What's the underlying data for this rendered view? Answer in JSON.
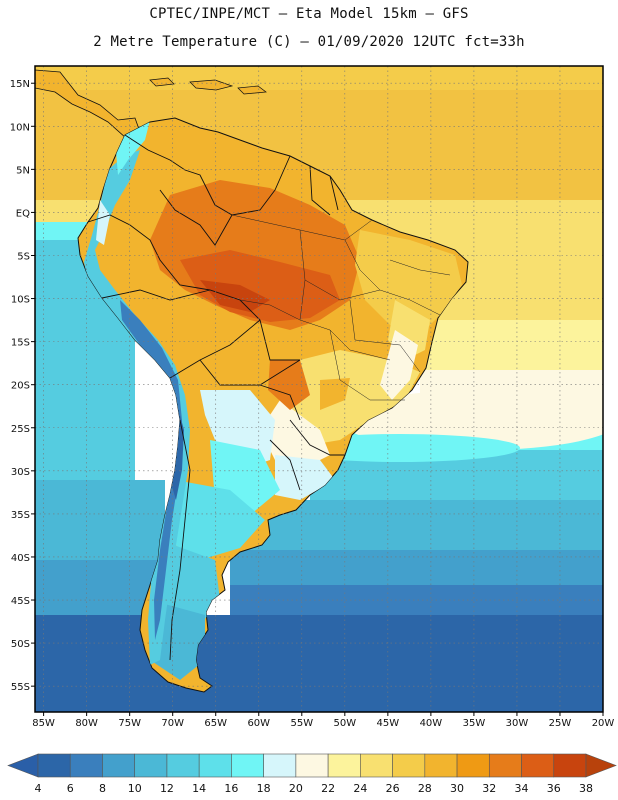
{
  "header": {
    "line1": "CPTEC/INPE/MCT –  Eta Model 15km – GFS",
    "line2": "2 Metre Temperature (C) – 01/09/2020 12UTC fct=33h"
  },
  "map": {
    "lat_labels": [
      "15N",
      "10N",
      "5N",
      "EQ",
      "5S",
      "10S",
      "15S",
      "20S",
      "25S",
      "30S",
      "35S",
      "40S",
      "45S",
      "50S",
      "55S"
    ],
    "lon_labels": [
      "85W",
      "80W",
      "75W",
      "70W",
      "65W",
      "60W",
      "55W",
      "50W",
      "45W",
      "40W",
      "35W",
      "30W",
      "25W",
      "20W"
    ],
    "lat_values": [
      15,
      10,
      5,
      0,
      -5,
      -10,
      -15,
      -20,
      -25,
      -30,
      -35,
      -40,
      -45,
      -50,
      -55
    ],
    "lon_values": [
      -85,
      -80,
      -75,
      -70,
      -65,
      -60,
      -55,
      -50,
      -45,
      -40,
      -35,
      -30,
      -25,
      -20
    ],
    "extent": {
      "lon_min": -86,
      "lon_max": -20,
      "lat_min": -58,
      "lat_max": 17
    }
  },
  "colorbar": {
    "labels": [
      "4",
      "6",
      "8",
      "10",
      "12",
      "14",
      "16",
      "18",
      "20",
      "22",
      "24",
      "26",
      "28",
      "30",
      "32",
      "34",
      "36",
      "38"
    ],
    "colors": [
      "#2c66a8",
      "#3a7fbd",
      "#43a0cc",
      "#4bb8d6",
      "#55cce0",
      "#5ee0ea",
      "#70f5f5",
      "#d6f6fb",
      "#fdf8e2",
      "#fcf39c",
      "#f8e070",
      "#f4cc4a",
      "#f2b42e",
      "#ef9a14",
      "#e67c1a",
      "#dc5e16",
      "#c8440e"
    ],
    "under_color": "#2a5fa8",
    "over_color": "#b8420c"
  }
}
